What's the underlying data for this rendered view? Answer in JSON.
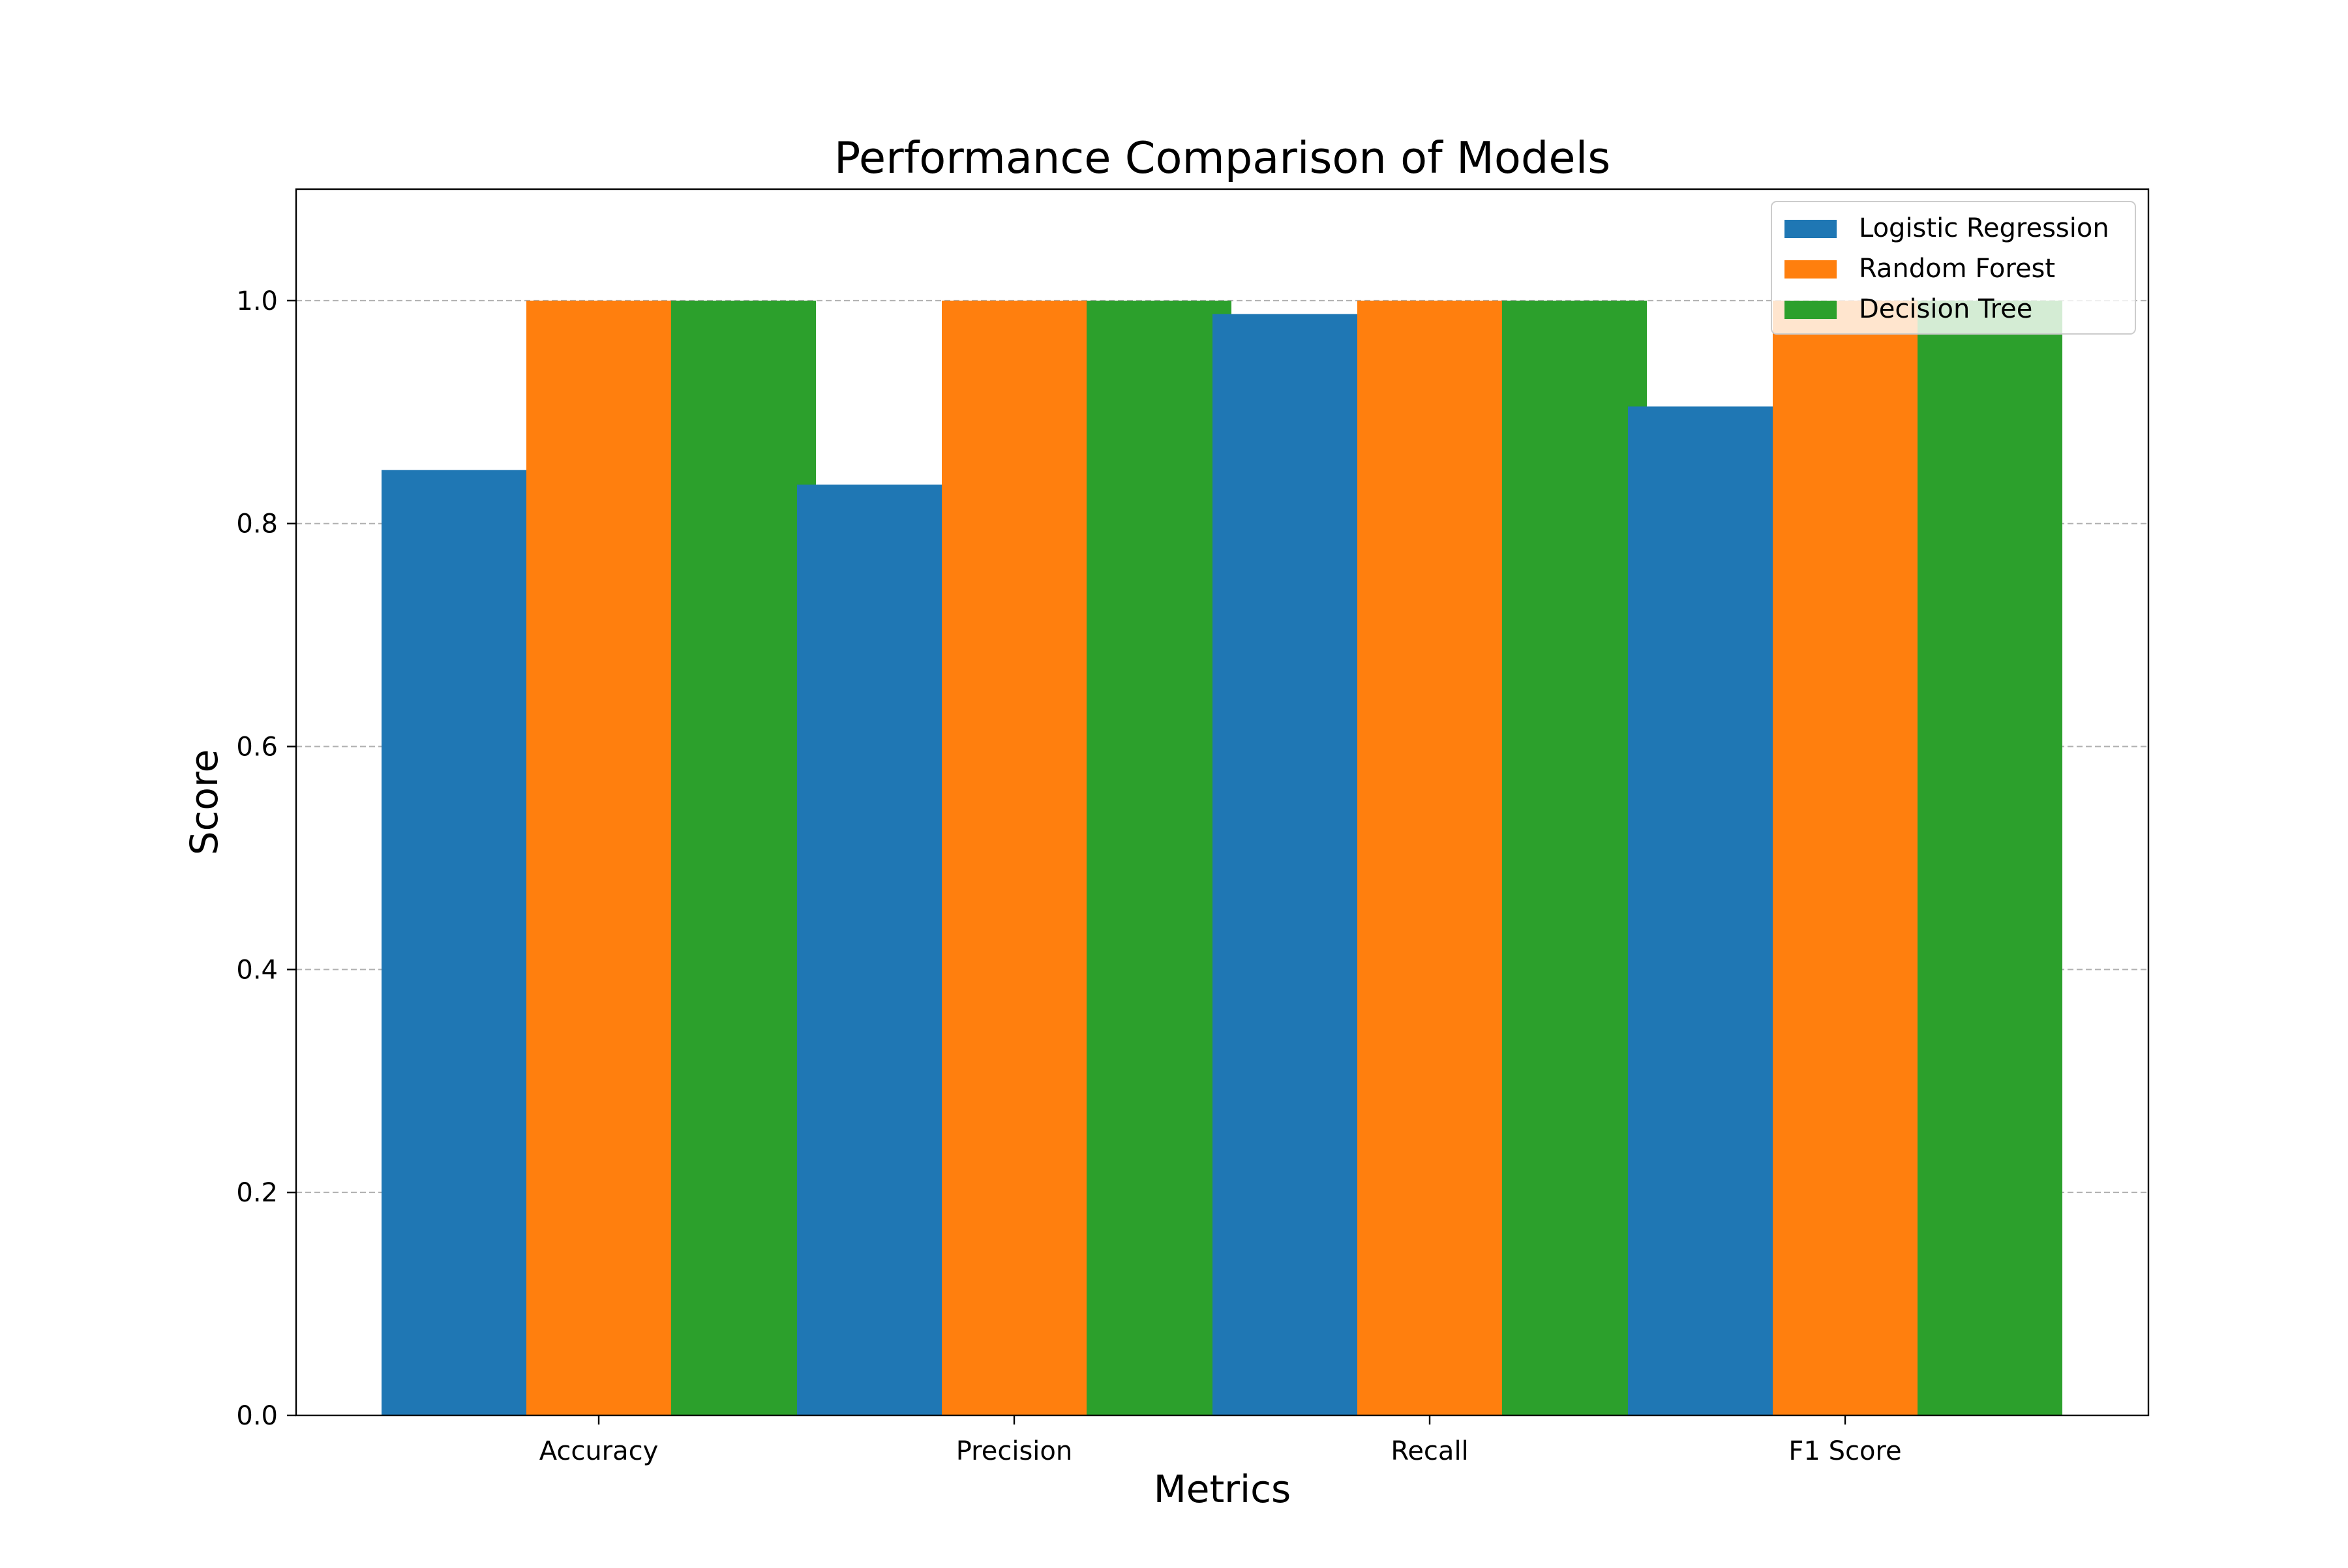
{
  "chart_data": {
    "type": "bar",
    "title": "Performance Comparison of Models",
    "xlabel": "Metrics",
    "ylabel": "Score",
    "categories": [
      "Accuracy",
      "Precision",
      "Recall",
      "F1 Score"
    ],
    "ylim": [
      0,
      1.1
    ],
    "yticks": [
      "0.0",
      "0.2",
      "0.4",
      "0.6",
      "0.8",
      "1.0"
    ],
    "grid": "y dashed",
    "legend_position": "top-right",
    "series": [
      {
        "name": "Logistic Regression",
        "color": "#1f77b4",
        "values": [
          0.848,
          0.835,
          0.988,
          0.905
        ]
      },
      {
        "name": "Random Forest",
        "color": "#ff7f0e",
        "values": [
          1.0,
          1.0,
          1.0,
          1.0
        ]
      },
      {
        "name": "Decision Tree",
        "color": "#2ca02c",
        "values": [
          1.0,
          1.0,
          1.0,
          1.0
        ]
      }
    ]
  }
}
